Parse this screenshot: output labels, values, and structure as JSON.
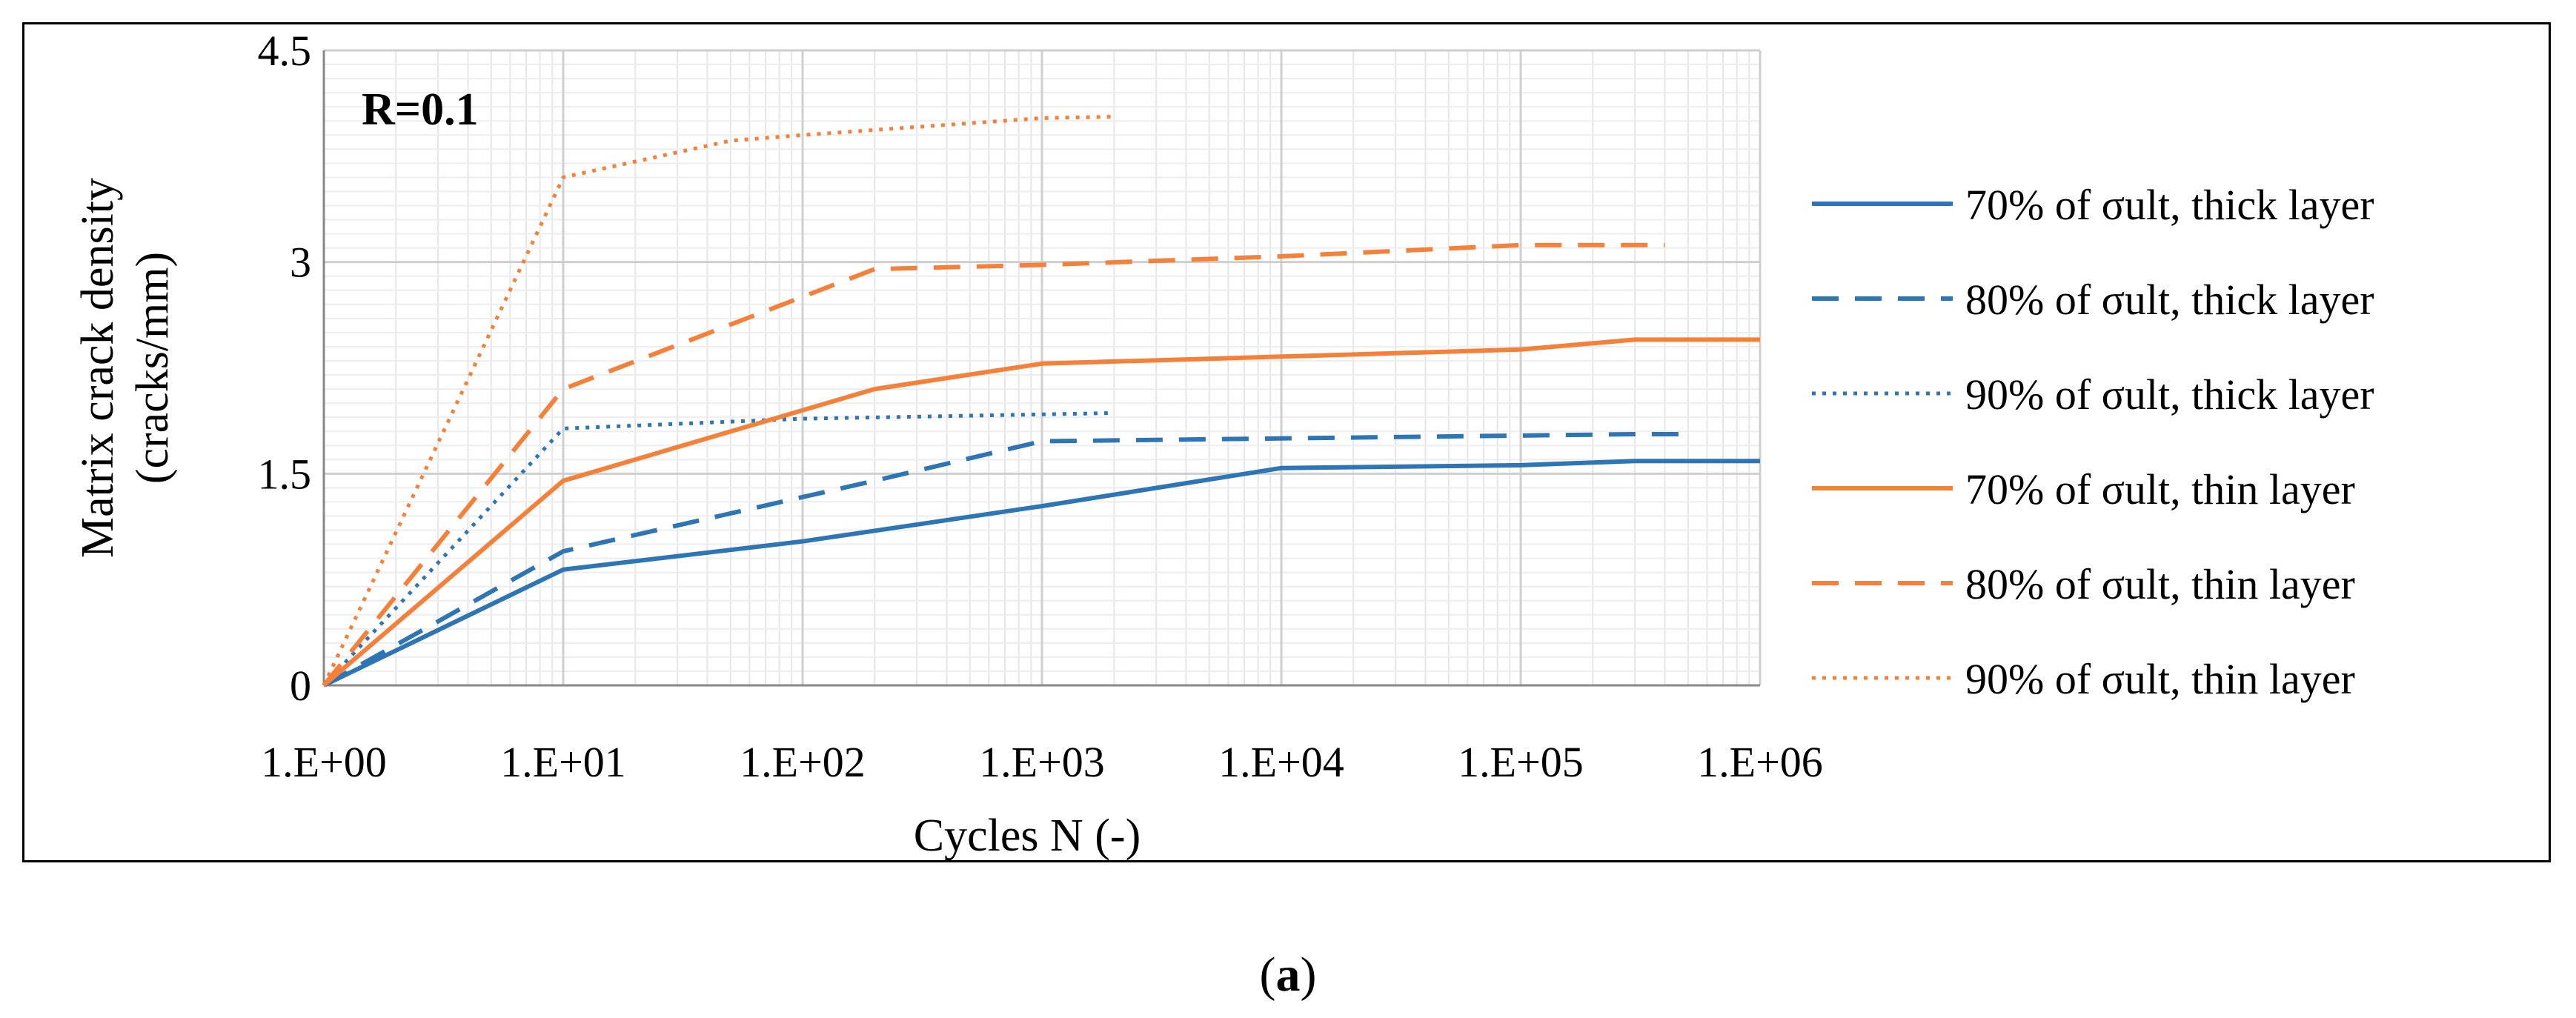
{
  "chart_data": {
    "type": "line",
    "annotation": "R=0.1",
    "xlabel": "Cycles N (-)",
    "ylabel_lines": [
      "Matrix crack density",
      "(cracks/mm)"
    ],
    "x_scale": "log",
    "xlim": [
      1,
      1000000
    ],
    "ylim": [
      0,
      4.5
    ],
    "x_tick_values": [
      1,
      10,
      100,
      1000,
      10000,
      100000,
      1000000
    ],
    "x_tick_labels": [
      "1.E+00",
      "1.E+01",
      "1.E+02",
      "1.E+03",
      "1.E+04",
      "1.E+05",
      "1.E+06"
    ],
    "y_tick_values": [
      0,
      1.5,
      3,
      4.5
    ],
    "y_tick_labels": [
      "0",
      "1.5",
      "3",
      "4.5"
    ],
    "grid": true,
    "legend_position": "right",
    "series": [
      {
        "name": "70% of σult, thick layer",
        "color": "#2E75B6",
        "dash": "solid",
        "x": [
          1,
          10,
          100,
          1000,
          10000,
          100000,
          300000,
          1000000
        ],
        "y": [
          0,
          0.82,
          1.02,
          1.27,
          1.54,
          1.56,
          1.59,
          1.59
        ]
      },
      {
        "name": "80% of σult, thick layer",
        "color": "#2E75B6",
        "dash": "dashed",
        "x": [
          1,
          10,
          200,
          1000,
          10000,
          100000,
          300000,
          500000
        ],
        "y": [
          0,
          0.95,
          1.45,
          1.73,
          1.75,
          1.77,
          1.78,
          1.78
        ]
      },
      {
        "name": "90% of σult, thick layer",
        "color": "#2E75B6",
        "dash": "dotted",
        "x": [
          1,
          10,
          100,
          1000,
          2000
        ],
        "y": [
          0,
          1.82,
          1.89,
          1.92,
          1.93
        ]
      },
      {
        "name": "70% of σult, thin layer",
        "color": "#F4803A",
        "dash": "solid",
        "x": [
          1,
          10,
          200,
          1000,
          10000,
          100000,
          300000,
          1000000
        ],
        "y": [
          0,
          1.45,
          2.1,
          2.28,
          2.33,
          2.38,
          2.45,
          2.45
        ]
      },
      {
        "name": "80% of σult, thin layer",
        "color": "#F4803A",
        "dash": "dashed",
        "x": [
          1,
          10,
          200,
          1000,
          10000,
          100000,
          400000
        ],
        "y": [
          0,
          2.1,
          2.95,
          2.98,
          3.04,
          3.12,
          3.12
        ]
      },
      {
        "name": "90% of σult, thin layer",
        "color": "#F4803A",
        "dash": "dotted",
        "x": [
          1,
          10,
          50,
          100,
          1000,
          2000
        ],
        "y": [
          0,
          3.6,
          3.86,
          3.9,
          4.02,
          4.03
        ]
      }
    ]
  },
  "caption": {
    "open": "(",
    "label": "a",
    "close": ")"
  }
}
